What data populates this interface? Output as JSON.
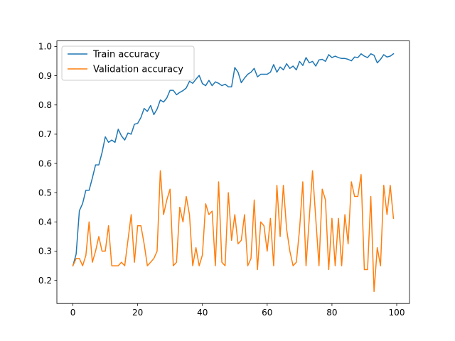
{
  "chart_data": {
    "type": "line",
    "title": "",
    "xlabel": "",
    "ylabel": "",
    "xlim": [
      -4.95,
      103.95
    ],
    "ylim": [
      0.121,
      1.019
    ],
    "xticks": [
      0,
      20,
      40,
      60,
      80,
      100
    ],
    "yticks": [
      0.2,
      0.3,
      0.4,
      0.5,
      0.6,
      0.7,
      0.8,
      0.9,
      1.0
    ],
    "xtick_labels": [
      "0",
      "20",
      "40",
      "60",
      "80",
      "100"
    ],
    "ytick_labels": [
      "0.2",
      "0.3",
      "0.4",
      "0.5",
      "0.6",
      "0.7",
      "0.8",
      "0.9",
      "1.0"
    ],
    "grid": false,
    "legend_position": "upper-left",
    "series": [
      {
        "name": "Train accuracy",
        "color": "#1f77b4",
        "x": [
          0,
          1,
          2,
          3,
          4,
          5,
          6,
          7,
          8,
          9,
          10,
          11,
          12,
          13,
          14,
          15,
          16,
          17,
          18,
          19,
          20,
          21,
          22,
          23,
          24,
          25,
          26,
          27,
          28,
          29,
          30,
          31,
          32,
          33,
          34,
          35,
          36,
          37,
          38,
          39,
          40,
          41,
          42,
          43,
          44,
          45,
          46,
          47,
          48,
          49,
          50,
          51,
          52,
          53,
          54,
          55,
          56,
          57,
          58,
          59,
          60,
          61,
          62,
          63,
          64,
          65,
          66,
          67,
          68,
          69,
          70,
          71,
          72,
          73,
          74,
          75,
          76,
          77,
          78,
          79,
          80,
          81,
          82,
          83,
          84,
          85,
          86,
          87,
          88,
          89,
          90,
          91,
          92,
          93,
          94,
          95,
          96,
          97,
          98,
          99
        ],
        "values": [
          0.25,
          0.29,
          0.438,
          0.463,
          0.508,
          0.508,
          0.55,
          0.595,
          0.595,
          0.637,
          0.691,
          0.672,
          0.68,
          0.672,
          0.717,
          0.694,
          0.68,
          0.704,
          0.7,
          0.734,
          0.737,
          0.757,
          0.788,
          0.778,
          0.798,
          0.767,
          0.786,
          0.817,
          0.81,
          0.824,
          0.85,
          0.85,
          0.835,
          0.843,
          0.849,
          0.858,
          0.881,
          0.874,
          0.888,
          0.901,
          0.873,
          0.866,
          0.884,
          0.866,
          0.879,
          0.874,
          0.866,
          0.871,
          0.862,
          0.862,
          0.928,
          0.912,
          0.876,
          0.892,
          0.905,
          0.912,
          0.925,
          0.896,
          0.905,
          0.905,
          0.905,
          0.912,
          0.938,
          0.912,
          0.93,
          0.92,
          0.941,
          0.925,
          0.933,
          0.92,
          0.949,
          0.935,
          0.962,
          0.944,
          0.949,
          0.933,
          0.954,
          0.956,
          0.949,
          0.972,
          0.962,
          0.967,
          0.962,
          0.959,
          0.959,
          0.956,
          0.951,
          0.964,
          0.962,
          0.975,
          0.967,
          0.962,
          0.975,
          0.97,
          0.944,
          0.956,
          0.972,
          0.964,
          0.967,
          0.975
        ]
      },
      {
        "name": "Validation accuracy",
        "color": "#ff7f0e",
        "x": [
          0,
          1,
          2,
          3,
          4,
          5,
          6,
          7,
          8,
          9,
          10,
          11,
          12,
          13,
          14,
          15,
          16,
          17,
          18,
          19,
          20,
          21,
          22,
          23,
          24,
          25,
          26,
          27,
          28,
          29,
          30,
          31,
          32,
          33,
          34,
          35,
          36,
          37,
          38,
          39,
          40,
          41,
          42,
          43,
          44,
          45,
          46,
          47,
          48,
          49,
          50,
          51,
          52,
          53,
          54,
          55,
          56,
          57,
          58,
          59,
          60,
          61,
          62,
          63,
          64,
          65,
          66,
          67,
          68,
          69,
          70,
          71,
          72,
          73,
          74,
          75,
          76,
          77,
          78,
          79,
          80,
          81,
          82,
          83,
          84,
          85,
          86,
          87,
          88,
          89,
          90,
          91,
          92,
          93,
          94,
          95,
          96,
          97,
          98,
          99
        ],
        "values": [
          0.25,
          0.275,
          0.275,
          0.25,
          0.285,
          0.4,
          0.262,
          0.3,
          0.35,
          0.3,
          0.3,
          0.387,
          0.25,
          0.25,
          0.25,
          0.262,
          0.25,
          0.337,
          0.425,
          0.262,
          0.387,
          0.387,
          0.325,
          0.25,
          0.262,
          0.275,
          0.3,
          0.575,
          0.425,
          0.475,
          0.512,
          0.25,
          0.262,
          0.45,
          0.4,
          0.487,
          0.425,
          0.25,
          0.312,
          0.25,
          0.287,
          0.462,
          0.425,
          0.437,
          0.25,
          0.537,
          0.262,
          0.25,
          0.5,
          0.337,
          0.425,
          0.325,
          0.337,
          0.425,
          0.25,
          0.275,
          0.475,
          0.237,
          0.4,
          0.387,
          0.3,
          0.412,
          0.25,
          0.525,
          0.35,
          0.525,
          0.375,
          0.3,
          0.25,
          0.262,
          0.375,
          0.537,
          0.25,
          0.412,
          0.575,
          0.412,
          0.25,
          0.512,
          0.475,
          0.237,
          0.412,
          0.25,
          0.412,
          0.25,
          0.425,
          0.325,
          0.537,
          0.487,
          0.487,
          0.562,
          0.237,
          0.237,
          0.487,
          0.162,
          0.312,
          0.25,
          0.525,
          0.425,
          0.525,
          0.412
        ]
      }
    ]
  }
}
